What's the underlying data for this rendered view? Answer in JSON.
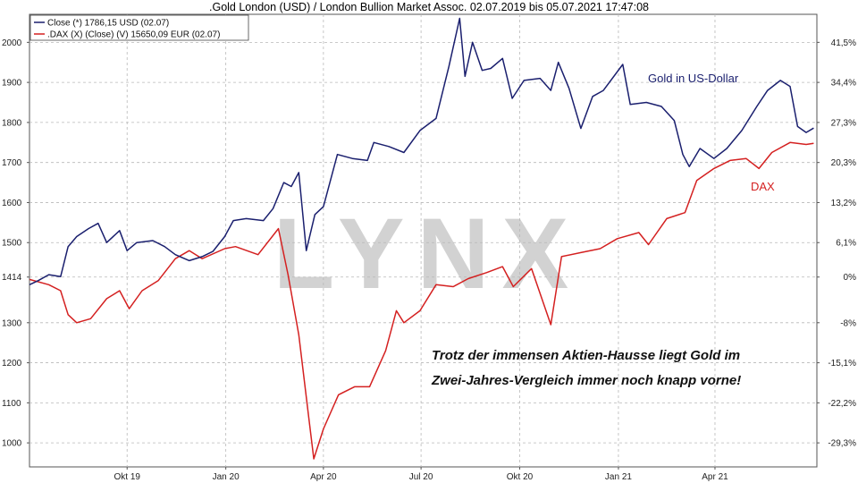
{
  "chart_data": {
    "type": "line",
    "title": ".Gold London (USD) / London Bullion Market Assoc. 02.07.2019 bis 05.07.2021 17:47:08",
    "legend": {
      "placement": "top-left",
      "entries": [
        {
          "text": "Close (*) 1786,15 USD (02.07)",
          "color": "#1a1f6e"
        },
        {
          "text": ".DAX (X) (Close) (V) 15650,09 EUR (02.07)",
          "color": "#d42020"
        }
      ]
    },
    "x_ticks": [
      "Okt 19",
      "Jan 20",
      "Apr 20",
      "Jul 20",
      "Okt 20",
      "Jan 21",
      "Apr 21"
    ],
    "x_tick_dates": [
      "2019-10-01",
      "2020-01-01",
      "2020-04-01",
      "2020-07-01",
      "2020-10-01",
      "2021-01-01",
      "2021-04-01"
    ],
    "x_range": [
      "2019-07-02",
      "2021-07-05"
    ],
    "y_left": {
      "ticks": [
        "2000",
        "1900",
        "1800",
        "1700",
        "1600",
        "1500",
        "1414",
        "1300",
        "1200",
        "1100",
        "1000"
      ],
      "tick_values": [
        2000,
        1900,
        1800,
        1700,
        1600,
        1500,
        1414,
        1300,
        1200,
        1100,
        1000
      ],
      "range": [
        940,
        2070
      ],
      "unit": "USD"
    },
    "y_right": {
      "ticks": [
        "41,5%",
        "34,4%",
        "27,3%",
        "20,3%",
        "13,2%",
        "6,1%",
        "0%",
        "-8%",
        "-15,1%",
        "-22,2%",
        "-29,3%"
      ],
      "unit": "%"
    },
    "grid": true,
    "series": [
      {
        "name": "Gold in US-Dollar",
        "color": "#1a1f6e",
        "axis": "left",
        "points": [
          [
            "2019-07-02",
            1395
          ],
          [
            "2019-07-10",
            1405
          ],
          [
            "2019-07-20",
            1420
          ],
          [
            "2019-07-31",
            1415
          ],
          [
            "2019-08-07",
            1490
          ],
          [
            "2019-08-15",
            1515
          ],
          [
            "2019-08-26",
            1535
          ],
          [
            "2019-09-04",
            1548
          ],
          [
            "2019-09-12",
            1500
          ],
          [
            "2019-09-24",
            1530
          ],
          [
            "2019-10-01",
            1480
          ],
          [
            "2019-10-10",
            1500
          ],
          [
            "2019-10-25",
            1505
          ],
          [
            "2019-11-05",
            1490
          ],
          [
            "2019-11-15",
            1470
          ],
          [
            "2019-11-28",
            1455
          ],
          [
            "2019-12-10",
            1465
          ],
          [
            "2019-12-20",
            1478
          ],
          [
            "2019-12-31",
            1515
          ],
          [
            "2020-01-08",
            1555
          ],
          [
            "2020-01-20",
            1560
          ],
          [
            "2020-02-05",
            1555
          ],
          [
            "2020-02-14",
            1585
          ],
          [
            "2020-02-24",
            1650
          ],
          [
            "2020-03-02",
            1640
          ],
          [
            "2020-03-09",
            1675
          ],
          [
            "2020-03-16",
            1480
          ],
          [
            "2020-03-24",
            1570
          ],
          [
            "2020-04-01",
            1590
          ],
          [
            "2020-04-14",
            1720
          ],
          [
            "2020-04-28",
            1710
          ],
          [
            "2020-05-12",
            1705
          ],
          [
            "2020-05-18",
            1750
          ],
          [
            "2020-06-01",
            1740
          ],
          [
            "2020-06-15",
            1725
          ],
          [
            "2020-06-30",
            1780
          ],
          [
            "2020-07-15",
            1810
          ],
          [
            "2020-07-27",
            1940
          ],
          [
            "2020-08-06",
            2060
          ],
          [
            "2020-08-11",
            1915
          ],
          [
            "2020-08-18",
            2000
          ],
          [
            "2020-08-27",
            1930
          ],
          [
            "2020-09-04",
            1935
          ],
          [
            "2020-09-15",
            1960
          ],
          [
            "2020-09-24",
            1860
          ],
          [
            "2020-10-05",
            1905
          ],
          [
            "2020-10-20",
            1910
          ],
          [
            "2020-10-30",
            1880
          ],
          [
            "2020-11-06",
            1950
          ],
          [
            "2020-11-16",
            1885
          ],
          [
            "2020-11-27",
            1785
          ],
          [
            "2020-12-08",
            1865
          ],
          [
            "2020-12-18",
            1880
          ],
          [
            "2021-01-05",
            1945
          ],
          [
            "2021-01-12",
            1845
          ],
          [
            "2021-01-27",
            1850
          ],
          [
            "2021-02-10",
            1840
          ],
          [
            "2021-02-22",
            1805
          ],
          [
            "2021-03-02",
            1720
          ],
          [
            "2021-03-08",
            1690
          ],
          [
            "2021-03-18",
            1735
          ],
          [
            "2021-03-31",
            1710
          ],
          [
            "2021-04-12",
            1735
          ],
          [
            "2021-04-26",
            1780
          ],
          [
            "2021-05-10",
            1840
          ],
          [
            "2021-05-20",
            1880
          ],
          [
            "2021-06-01",
            1905
          ],
          [
            "2021-06-10",
            1890
          ],
          [
            "2021-06-17",
            1790
          ],
          [
            "2021-06-25",
            1775
          ],
          [
            "2021-07-02",
            1786
          ]
        ]
      },
      {
        "name": "DAX",
        "color": "#d42020",
        "axis": "right",
        "rebased_to": 1414,
        "points": [
          [
            "2019-07-02",
            1408
          ],
          [
            "2019-07-20",
            1395
          ],
          [
            "2019-07-31",
            1380
          ],
          [
            "2019-08-07",
            1320
          ],
          [
            "2019-08-15",
            1300
          ],
          [
            "2019-08-28",
            1310
          ],
          [
            "2019-09-12",
            1360
          ],
          [
            "2019-09-24",
            1380
          ],
          [
            "2019-10-03",
            1335
          ],
          [
            "2019-10-15",
            1380
          ],
          [
            "2019-10-30",
            1405
          ],
          [
            "2019-11-15",
            1460
          ],
          [
            "2019-11-28",
            1480
          ],
          [
            "2019-12-10",
            1460
          ],
          [
            "2019-12-31",
            1485
          ],
          [
            "2020-01-10",
            1490
          ],
          [
            "2020-01-31",
            1470
          ],
          [
            "2020-02-19",
            1535
          ],
          [
            "2020-02-28",
            1420
          ],
          [
            "2020-03-09",
            1270
          ],
          [
            "2020-03-18",
            1070
          ],
          [
            "2020-03-23",
            960
          ],
          [
            "2020-04-01",
            1035
          ],
          [
            "2020-04-15",
            1120
          ],
          [
            "2020-04-30",
            1140
          ],
          [
            "2020-05-14",
            1140
          ],
          [
            "2020-05-29",
            1230
          ],
          [
            "2020-06-08",
            1330
          ],
          [
            "2020-06-15",
            1300
          ],
          [
            "2020-06-30",
            1330
          ],
          [
            "2020-07-15",
            1395
          ],
          [
            "2020-07-31",
            1390
          ],
          [
            "2020-08-14",
            1410
          ],
          [
            "2020-08-31",
            1425
          ],
          [
            "2020-09-15",
            1440
          ],
          [
            "2020-09-25",
            1390
          ],
          [
            "2020-10-12",
            1435
          ],
          [
            "2020-10-30",
            1295
          ],
          [
            "2020-11-09",
            1465
          ],
          [
            "2020-11-27",
            1475
          ],
          [
            "2020-12-15",
            1485
          ],
          [
            "2020-12-31",
            1510
          ],
          [
            "2021-01-20",
            1525
          ],
          [
            "2021-01-29",
            1495
          ],
          [
            "2021-02-15",
            1560
          ],
          [
            "2021-03-04",
            1575
          ],
          [
            "2021-03-15",
            1655
          ],
          [
            "2021-03-31",
            1685
          ],
          [
            "2021-04-15",
            1705
          ],
          [
            "2021-04-30",
            1710
          ],
          [
            "2021-05-12",
            1685
          ],
          [
            "2021-05-24",
            1725
          ],
          [
            "2021-06-10",
            1750
          ],
          [
            "2021-06-25",
            1745
          ],
          [
            "2021-07-02",
            1748
          ]
        ]
      }
    ],
    "annotations": [
      {
        "text": "Gold in US-Dollar",
        "color": "#1a1f6e"
      },
      {
        "text": "DAX",
        "color": "#d42020"
      },
      {
        "text": "Trotz der immensen Aktien-Hausse liegt Gold im",
        "color": "#111111"
      },
      {
        "text": "Zwei-Jahres-Vergleich immer noch knapp vorne!",
        "color": "#111111"
      }
    ],
    "watermark": "LYNX"
  }
}
